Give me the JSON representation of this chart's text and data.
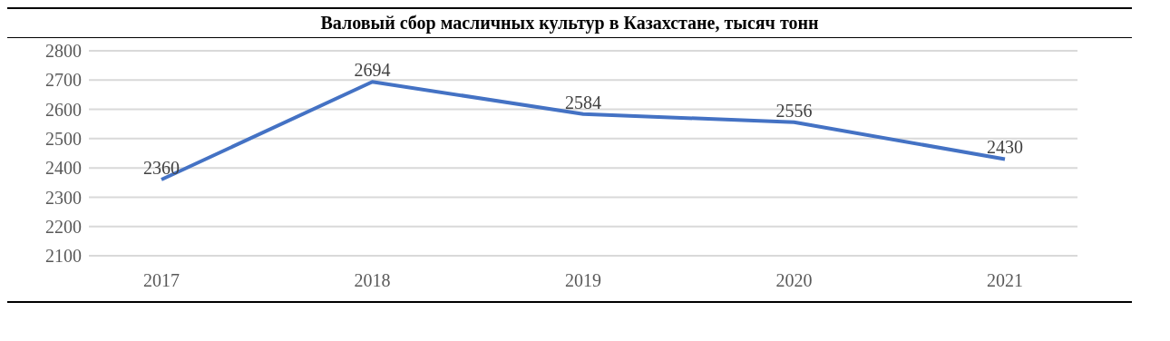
{
  "chart_data": {
    "type": "line",
    "title": "Валовый сбор масличных культур в Казахстане, тысяч тонн",
    "categories": [
      "2017",
      "2018",
      "2019",
      "2020",
      "2021"
    ],
    "series": [
      {
        "color": "#4472c4",
        "values": [
          2360,
          2694,
          2584,
          2556,
          2430
        ]
      }
    ],
    "ylim": [
      2100,
      2800
    ],
    "yticks": [
      2100,
      2200,
      2300,
      2400,
      2500,
      2600,
      2700,
      2800
    ],
    "grid": "y",
    "data_labels": true,
    "legend": false,
    "marker": "none",
    "line_style": "solid"
  }
}
